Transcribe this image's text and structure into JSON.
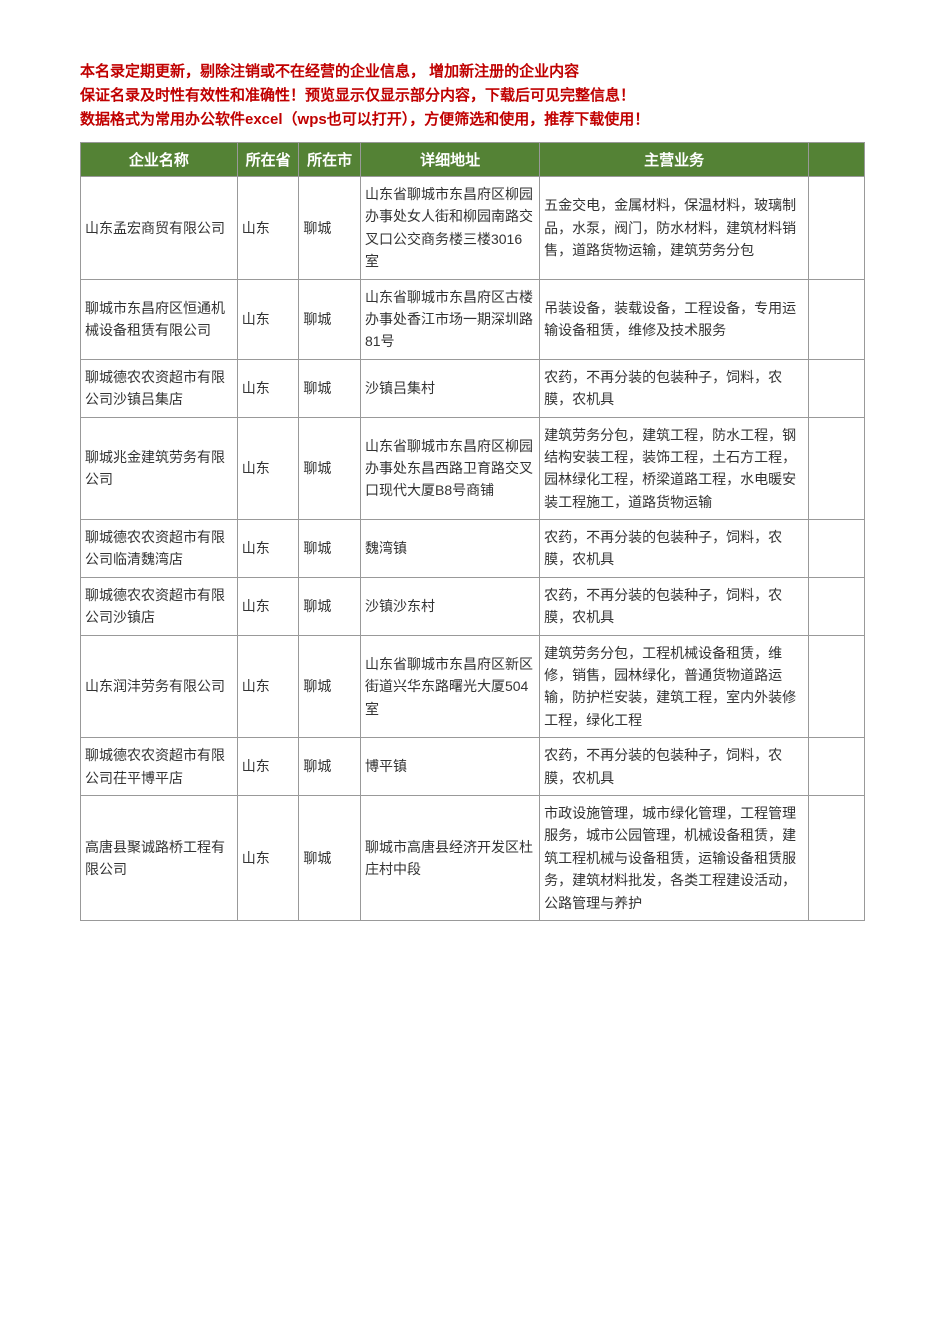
{
  "notice": {
    "line1": "本名录定期更新，剔除注销或不在经营的企业信息， 增加新注册的企业内容",
    "line2": "保证名录及时性有效性和准确性！预览显示仅显示部分内容，下载后可见完整信息！",
    "line3": "数据格式为常用办公软件excel（wps也可以打开），方便筛选和使用，推荐下载使用！"
  },
  "table": {
    "headers": {
      "name": "企业名称",
      "province": "所在省",
      "city": "所在市",
      "address": "详细地址",
      "business": "主营业务",
      "extra": ""
    },
    "rows": [
      {
        "name": "山东孟宏商贸有限公司",
        "province": "山东",
        "city": "聊城",
        "address": "山东省聊城市东昌府区柳园办事处女人街和柳园南路交叉口公交商务楼三楼3016室",
        "business": "五金交电，金属材料，保温材料，玻璃制品，水泵，阀门，防水材料，建筑材料销售，道路货物运输，建筑劳务分包"
      },
      {
        "name": "聊城市东昌府区恒通机械设备租赁有限公司",
        "province": "山东",
        "city": "聊城",
        "address": "山东省聊城市东昌府区古楼办事处香江市场一期深圳路81号",
        "business": "吊装设备，装载设备，工程设备，专用运输设备租赁，维修及技术服务"
      },
      {
        "name": "聊城德农农资超市有限公司沙镇吕集店",
        "province": "山东",
        "city": "聊城",
        "address": "沙镇吕集村",
        "business": "农药，不再分装的包装种子，饲料，农膜，农机具"
      },
      {
        "name": "聊城兆金建筑劳务有限公司",
        "province": "山东",
        "city": "聊城",
        "address": "山东省聊城市东昌府区柳园办事处东昌西路卫育路交叉口现代大厦B8号商铺",
        "business": "建筑劳务分包，建筑工程，防水工程，钢结构安装工程，装饰工程，土石方工程，园林绿化工程，桥梁道路工程，水电暖安装工程施工，道路货物运输"
      },
      {
        "name": "聊城德农农资超市有限公司临清魏湾店",
        "province": "山东",
        "city": "聊城",
        "address": "魏湾镇",
        "business": "农药，不再分装的包装种子，饲料，农膜，农机具"
      },
      {
        "name": "聊城德农农资超市有限公司沙镇店",
        "province": "山东",
        "city": "聊城",
        "address": "沙镇沙东村",
        "business": "农药，不再分装的包装种子，饲料，农膜，农机具"
      },
      {
        "name": "山东润沣劳务有限公司",
        "province": "山东",
        "city": "聊城",
        "address": "山东省聊城市东昌府区新区街道兴华东路曙光大厦504室",
        "business": "建筑劳务分包，工程机械设备租赁，维修，销售，园林绿化，普通货物道路运输，防护栏安装，建筑工程，室内外装修工程，绿化工程"
      },
      {
        "name": "聊城德农农资超市有限公司茌平博平店",
        "province": "山东",
        "city": "聊城",
        "address": "博平镇",
        "business": "农药，不再分装的包装种子，饲料，农膜，农机具"
      },
      {
        "name": "高唐县聚诚路桥工程有限公司",
        "province": "山东",
        "city": "聊城",
        "address": "聊城市高唐县经济开发区杜庄村中段",
        "business": "市政设施管理，城市绿化管理，工程管理服务，城市公园管理，机械设备租赁，建筑工程机械与设备租赁，运输设备租赁服务，建筑材料批发，各类工程建设活动，公路管理与养护"
      }
    ]
  },
  "styling": {
    "notice_color": "#c00000",
    "header_bg": "#548235",
    "header_text_color": "#ffffff",
    "border_color": "#999999",
    "cell_text_color": "#333333",
    "font_family": "Microsoft YaHei",
    "notice_fontsize": 15,
    "header_fontsize": 15,
    "cell_fontsize": 14,
    "column_widths": {
      "name": 140,
      "province": 55,
      "city": 55,
      "address": 160,
      "business": 240,
      "extra": 50
    }
  }
}
